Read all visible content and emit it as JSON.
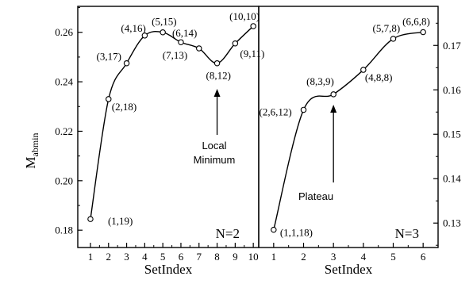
{
  "chart_data": [
    {
      "type": "scatter",
      "panel_label": "N=2",
      "xlabel": "SetIndex",
      "ylabel": "M_abmin",
      "ylabel_main": "M",
      "ylabel_sub": "abmin",
      "xlim": [
        0.3,
        10.3
      ],
      "ylim": [
        0.173,
        0.2705
      ],
      "x_ticks": [
        1,
        2,
        3,
        4,
        5,
        6,
        7,
        8,
        9,
        10
      ],
      "y_ticks": [
        0.18,
        0.2,
        0.22,
        0.24,
        0.26
      ],
      "y_tick_labels": [
        "0.18",
        "0.20",
        "0.22",
        "0.24",
        "0.26"
      ],
      "points": [
        {
          "x": 1,
          "y": 0.1845,
          "label": "(1,19)"
        },
        {
          "x": 2,
          "y": 0.233,
          "label": "(2,18)"
        },
        {
          "x": 3,
          "y": 0.2475,
          "label": "(3,17)"
        },
        {
          "x": 4,
          "y": 0.2587,
          "label": "(4,16)"
        },
        {
          "x": 5,
          "y": 0.26,
          "label": "(5,15)"
        },
        {
          "x": 6,
          "y": 0.256,
          "label": "(6,14)"
        },
        {
          "x": 7,
          "y": 0.2535,
          "label": "(7,13)"
        },
        {
          "x": 8,
          "y": 0.2475,
          "label": "(8,12)"
        },
        {
          "x": 9,
          "y": 0.2555,
          "label": "(9,11)"
        },
        {
          "x": 10,
          "y": 0.2625,
          "label": "(10,10)"
        }
      ],
      "annotation": {
        "lines": [
          "Local",
          "Minimum"
        ],
        "x": 8,
        "y": 0.2475
      }
    },
    {
      "type": "scatter",
      "panel_label": "N=3",
      "xlabel": "SetIndex",
      "xlim": [
        0.5,
        6.5
      ],
      "ylim": [
        0.1245,
        0.1788
      ],
      "x_ticks": [
        1,
        2,
        3,
        4,
        5,
        6
      ],
      "y_ticks": [
        0.13,
        0.14,
        0.15,
        0.16,
        0.17
      ],
      "y_tick_labels": [
        "0.13",
        "0.14",
        "0.15",
        "0.16",
        "0.17"
      ],
      "points": [
        {
          "x": 1,
          "y": 0.1285,
          "label": "(1,1,18)"
        },
        {
          "x": 2,
          "y": 0.1555,
          "label": "(2,6,12)"
        },
        {
          "x": 3,
          "y": 0.159,
          "label": "(8,3,9)"
        },
        {
          "x": 4,
          "y": 0.1645,
          "label": "(4,8,8)"
        },
        {
          "x": 5,
          "y": 0.1715,
          "label": "(5,7,8)"
        },
        {
          "x": 6,
          "y": 0.173,
          "label": "(6,6,8)"
        }
      ],
      "annotation": {
        "lines": [
          "Plateau"
        ],
        "x": 3,
        "y": 0.159
      }
    }
  ]
}
